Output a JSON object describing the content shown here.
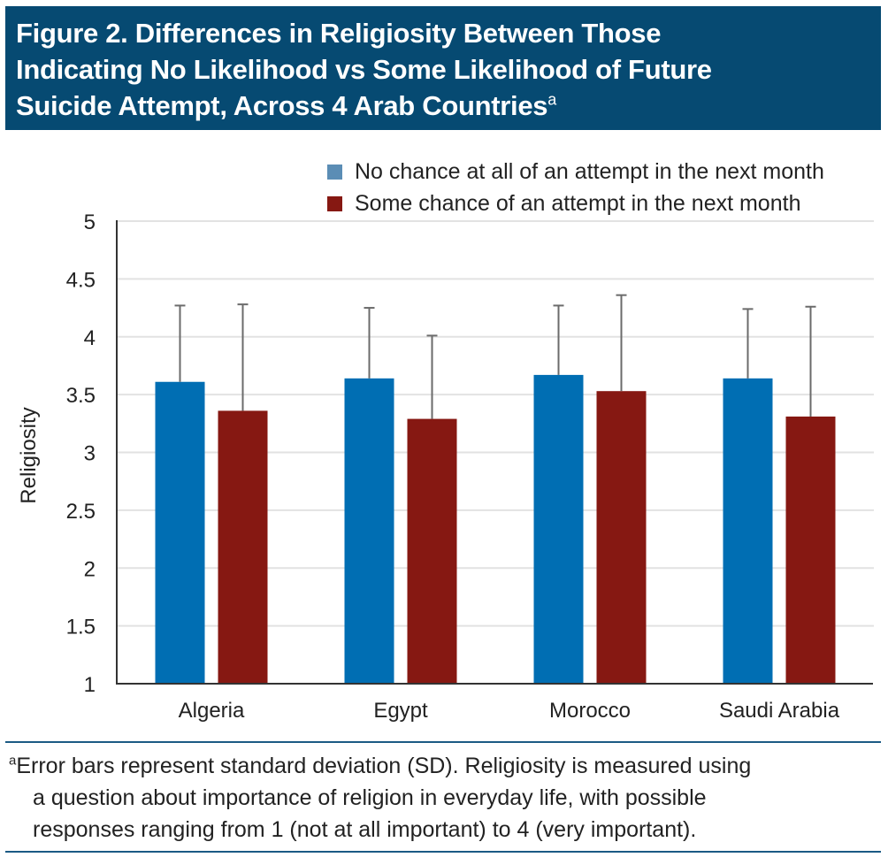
{
  "title": {
    "lines": [
      "Figure 2. Differences in Religiosity Between Those",
      "Indicating No Likelihood vs Some Likelihood of Future",
      "Suicide Attempt, Across 4 Arab Countries"
    ],
    "superscript": "a",
    "background": "#064a72"
  },
  "footnote": {
    "marker": "a",
    "lines": [
      "Error bars represent standard deviation (SD). Religiosity is measured using",
      "a question about importance of religion in everyday life, with possible",
      "responses ranging from 1 (not at all important) to 4 (very important)."
    ]
  },
  "chart_data": {
    "type": "bar",
    "title": "Differences in Religiosity Between Those Indicating No Likelihood vs Some Likelihood of Future Suicide Attempt, Across 4 Arab Countries",
    "xlabel": "",
    "ylabel": "Religiosity",
    "ylim": [
      1,
      5
    ],
    "yticks": [
      1,
      1.5,
      2,
      2.5,
      3,
      3.5,
      4,
      4.5,
      5
    ],
    "ytick_labels": [
      "1",
      "1.5",
      "2",
      "2.5",
      "3",
      "3.5",
      "4",
      "4.5",
      "5"
    ],
    "grid": true,
    "legend_position": "top-right",
    "categories": [
      "Algeria",
      "Egypt",
      "Morocco",
      "Saudi Arabia"
    ],
    "series": [
      {
        "name": "No chance at all of an attempt in the next month",
        "color": "#006eb3",
        "legend_color": "#5b8db5",
        "values": [
          3.61,
          3.64,
          3.67,
          3.64
        ],
        "sd": [
          0.66,
          0.61,
          0.6,
          0.6
        ]
      },
      {
        "name": "Some chance of an attempt in the next month",
        "color": "#861812",
        "legend_color": "#861812",
        "values": [
          3.36,
          3.29,
          3.53,
          3.31
        ],
        "sd": [
          0.92,
          0.72,
          0.83,
          0.95
        ]
      }
    ],
    "error_bars": "standard deviation (SD), upper only"
  }
}
